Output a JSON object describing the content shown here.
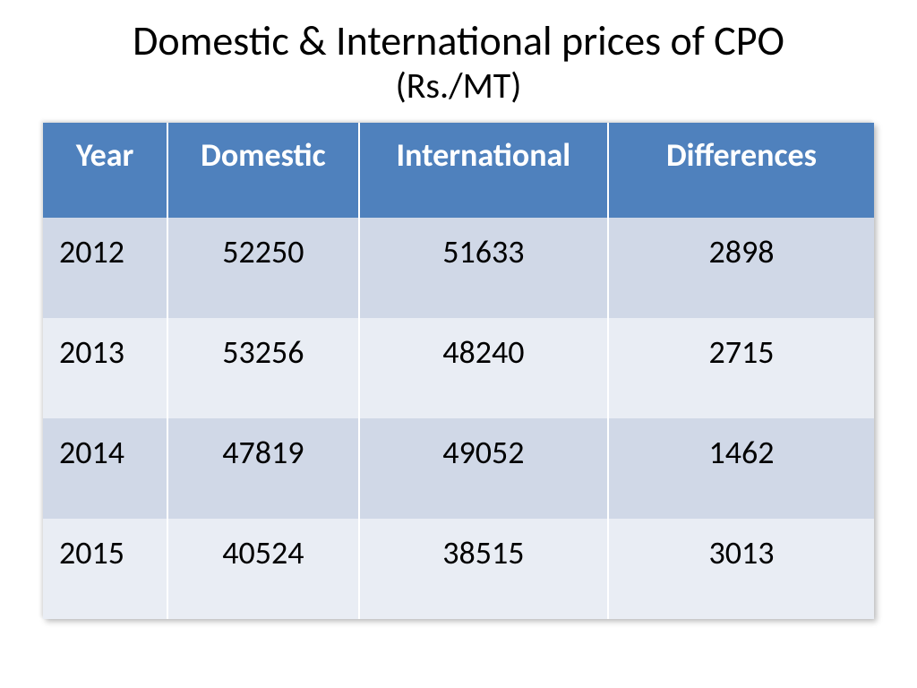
{
  "title": {
    "main": "Domestic & International prices of CPO",
    "sub": "(Rs./MT)"
  },
  "table": {
    "type": "table",
    "header_bg": "#4f81bd",
    "header_fg": "#ffffff",
    "row_band_a": "#d0d8e7",
    "row_band_b": "#e9edf4",
    "border_color": "#ffffff",
    "header_fontsize": 36,
    "cell_fontsize": 36,
    "columns": [
      {
        "key": "year",
        "label": "Year",
        "width_pct": 15,
        "align": "left"
      },
      {
        "key": "domestic",
        "label": "Domestic",
        "width_pct": 23,
        "align": "center"
      },
      {
        "key": "international",
        "label": "International",
        "width_pct": 30,
        "align": "center"
      },
      {
        "key": "differences",
        "label": "Differences",
        "width_pct": 32,
        "align": "center"
      }
    ],
    "rows": [
      {
        "year": "2012",
        "domestic": "52250",
        "international": "51633",
        "differences": "2898"
      },
      {
        "year": "2013",
        "domestic": "53256",
        "international": "48240",
        "differences": "2715"
      },
      {
        "year": "2014",
        "domestic": "47819",
        "international": "49052",
        "differences": "1462"
      },
      {
        "year": "2015",
        "domestic": "40524",
        "international": "38515",
        "differences": "3013"
      }
    ]
  }
}
